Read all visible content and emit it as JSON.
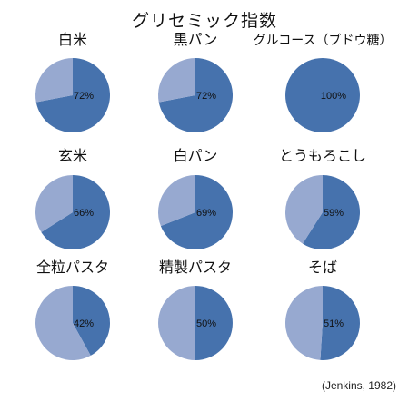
{
  "colors": {
    "dark": "#4672ad",
    "light": "#97a9d0"
  },
  "chart_data": {
    "type": "pie",
    "title": "グリセミック指数",
    "source": "(Jenkins, 1982)",
    "pies": [
      {
        "label": "白米",
        "value": 72,
        "value_label": "72%"
      },
      {
        "label": "黒パン",
        "value": 72,
        "value_label": "72%"
      },
      {
        "label": "グルコース（ブドウ糖）",
        "value": 100,
        "value_label": "100%"
      },
      {
        "label": "玄米",
        "value": 66,
        "value_label": "66%"
      },
      {
        "label": "白パン",
        "value": 69,
        "value_label": "69%"
      },
      {
        "label": "とうもろこし",
        "value": 59,
        "value_label": "59%"
      },
      {
        "label": "全粒パスタ",
        "value": 42,
        "value_label": "42%"
      },
      {
        "label": "精製パスタ",
        "value": 50,
        "value_label": "50%"
      },
      {
        "label": "そば",
        "value": 51,
        "value_label": "51%"
      }
    ]
  }
}
